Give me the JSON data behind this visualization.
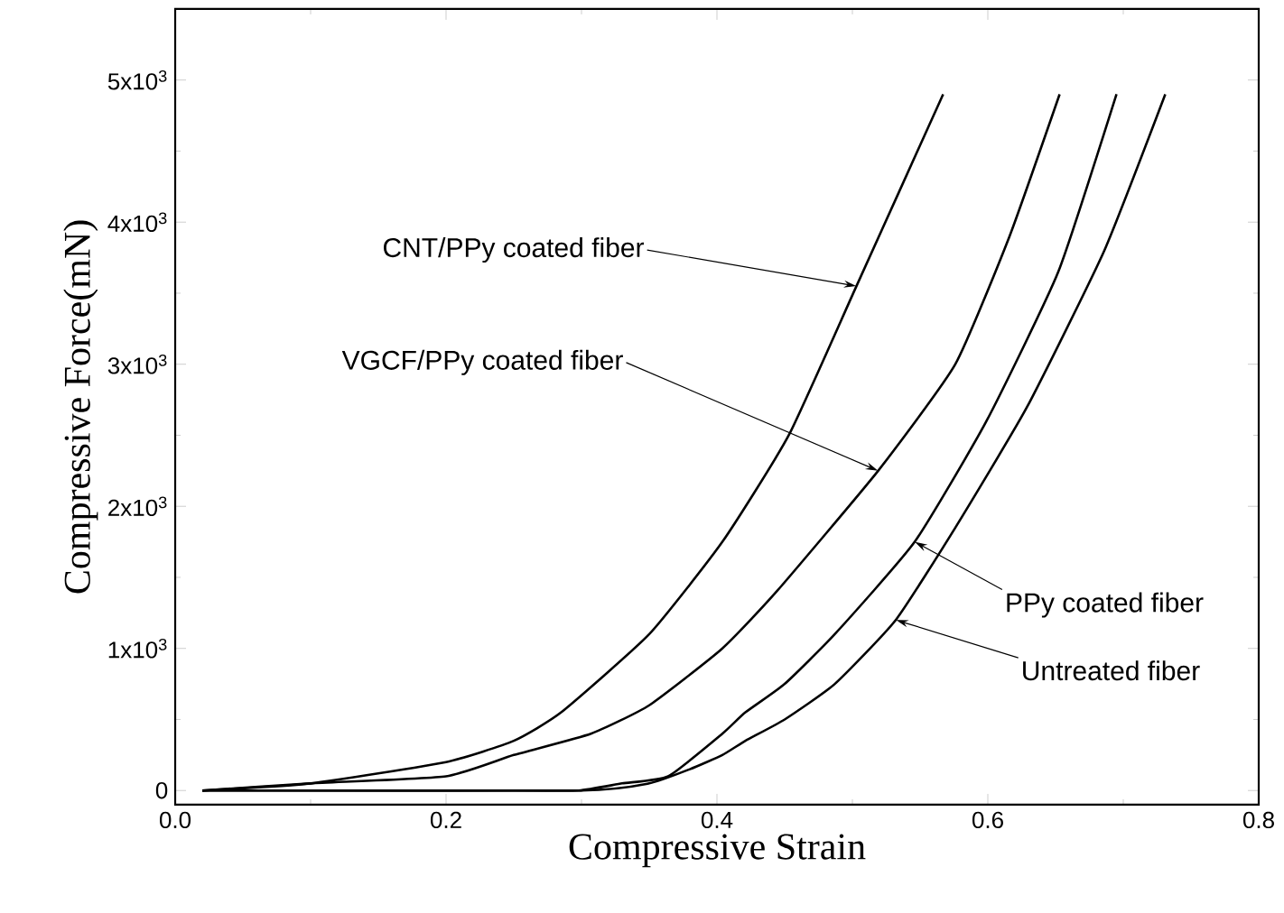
{
  "chart_data": {
    "type": "line",
    "xlabel": "Compressive Strain",
    "ylabel": "Compressive Force(mN)",
    "xlim": [
      0,
      0.8
    ],
    "ylim": [
      -100,
      5500
    ],
    "xticks": [
      {
        "value": 0,
        "label": "0.0"
      },
      0.2,
      0.4,
      0.6,
      0.8
    ],
    "yticks": [
      0,
      {
        "value": 1000,
        "label": "1x10$^{3}$"
      },
      {
        "value": 2000,
        "label": "2x10$^{3}$"
      },
      {
        "value": 3000,
        "label": "3x10$^{3}$"
      },
      {
        "value": 4000,
        "label": "4x10$^{3}$"
      },
      {
        "value": 5000,
        "label": "5x10$^{3}$"
      }
    ],
    "series": [
      {
        "color": "#000000",
        "x": [
          0.02,
          0.1,
          0.2,
          0.25,
          0.285,
          0.35,
          0.404,
          0.453,
          0.503,
          0.567
        ],
        "values": [
          0,
          50,
          200,
          350,
          550,
          1100,
          1750,
          2500,
          3550,
          4900
        ]
      },
      {
        "color": "#000000",
        "x": [
          0.02,
          0.1,
          0.2,
          0.25,
          0.307,
          0.35,
          0.404,
          0.444,
          0.519,
          0.576,
          0.616,
          0.653
        ],
        "values": [
          0,
          50,
          100,
          250,
          400,
          600,
          1000,
          1400,
          2250,
          3000,
          3900,
          4900
        ]
      },
      {
        "color": "#000000",
        "x": [
          0.02,
          0.25,
          0.298,
          0.33,
          0.364,
          0.404,
          0.421,
          0.45,
          0.487,
          0.546,
          0.599,
          0.652,
          0.695
        ],
        "values": [
          0,
          0,
          0,
          50,
          100,
          400,
          550,
          750,
          1100,
          1750,
          2600,
          3650,
          4900
        ]
      },
      {
        "color": "#000000",
        "x": [
          0.02,
          0.3,
          0.35,
          0.38,
          0.404,
          0.421,
          0.45,
          0.487,
          0.532,
          0.576,
          0.629,
          0.686,
          0.731
        ],
        "values": [
          0,
          0,
          50,
          150,
          250,
          350,
          500,
          750,
          1200,
          1850,
          2700,
          3800,
          4900
        ]
      }
    ],
    "annotations": [
      {
        "text": "CNT/PPy coated fiber",
        "x": 0.503,
        "y": 3550
      },
      {
        "text": "VGCF/PPy coated fiber",
        "x": 0.519,
        "y": 2250
      },
      {
        "text": "PPy coated fiber",
        "x": 0.546,
        "y": 1750
      },
      {
        "text": "Untreated fiber",
        "x": 0.532,
        "y": 1200
      }
    ]
  }
}
